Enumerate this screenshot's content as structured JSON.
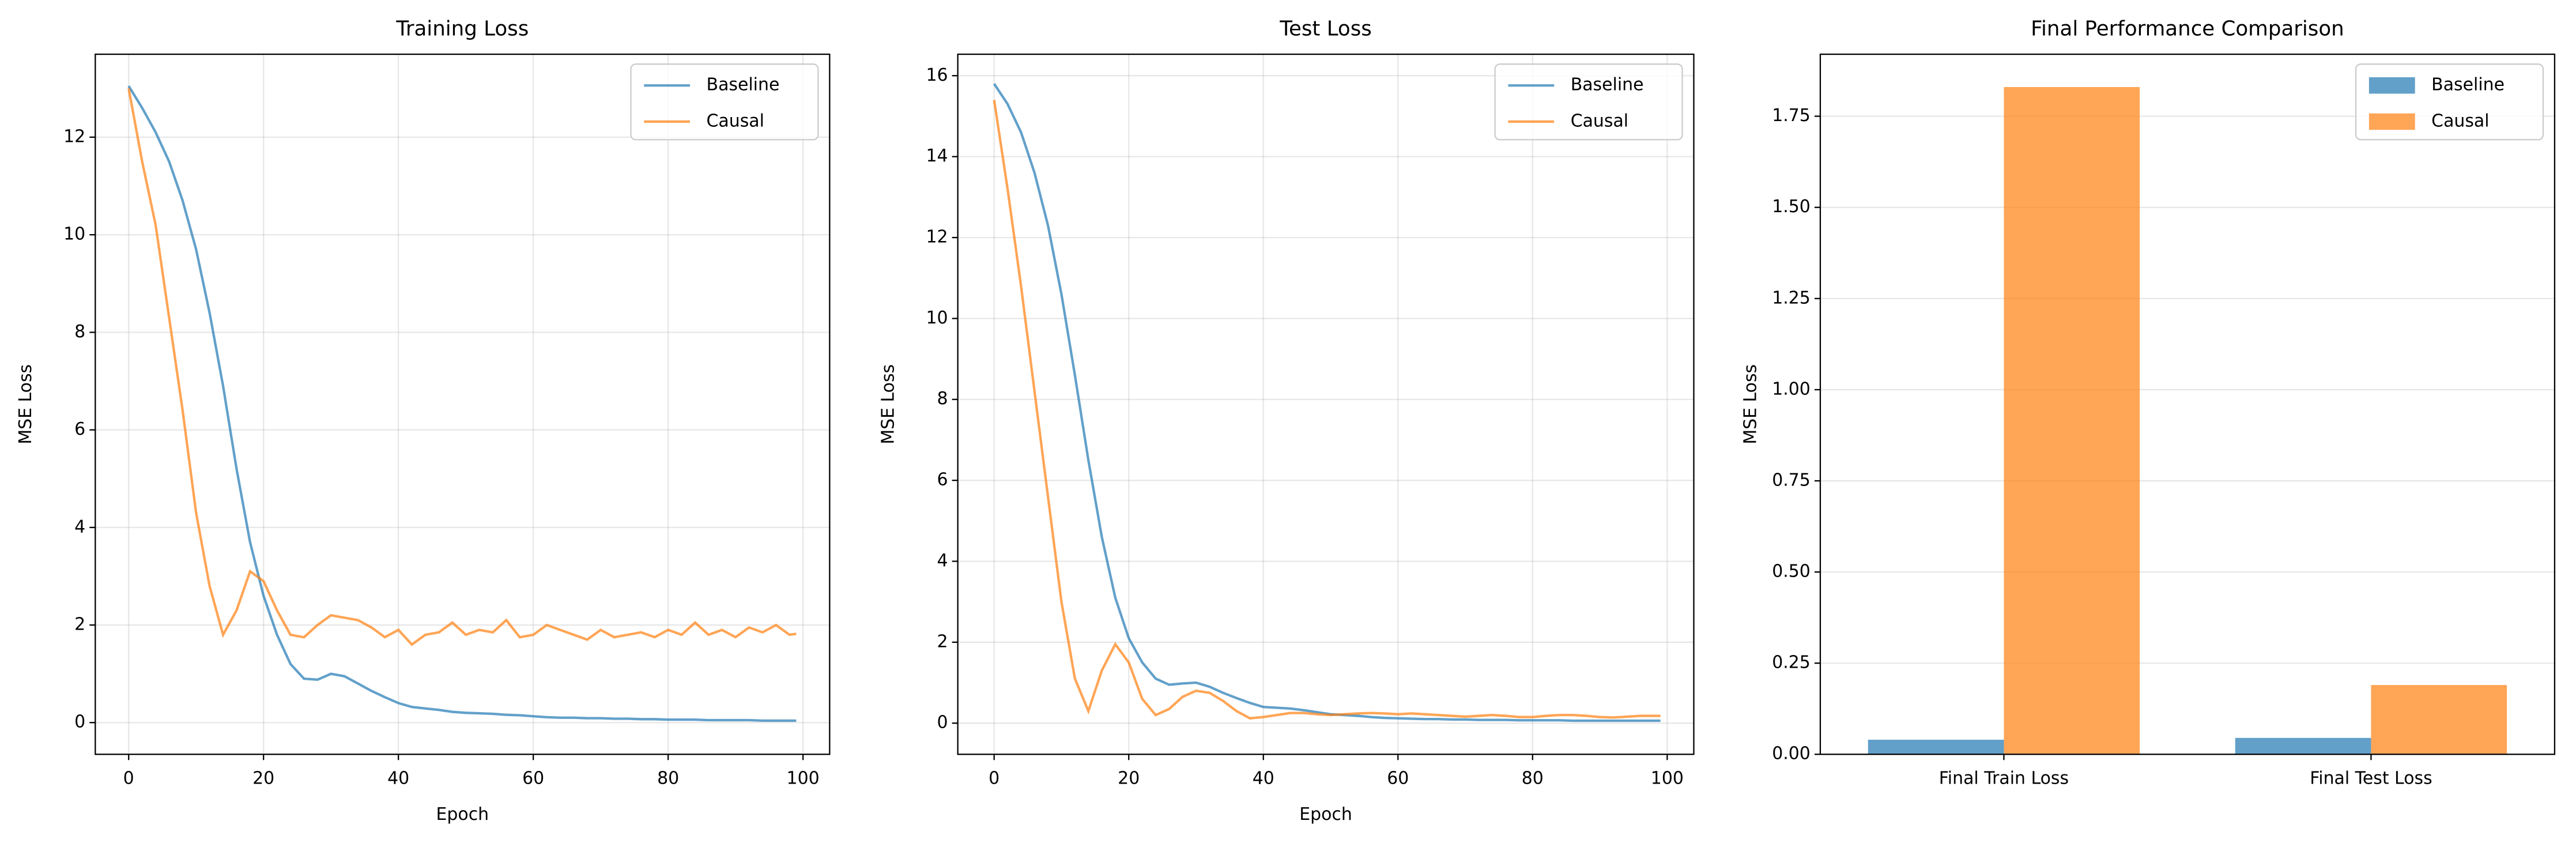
{
  "chart_data": [
    {
      "type": "line",
      "title": "Training Loss",
      "xlabel": "Epoch",
      "ylabel": "MSE Loss",
      "x": [
        0,
        2,
        4,
        6,
        8,
        10,
        12,
        14,
        16,
        18,
        20,
        22,
        24,
        26,
        28,
        30,
        32,
        34,
        36,
        38,
        40,
        42,
        44,
        46,
        48,
        50,
        52,
        54,
        56,
        58,
        60,
        62,
        64,
        66,
        68,
        70,
        72,
        74,
        76,
        78,
        80,
        82,
        84,
        86,
        88,
        90,
        92,
        94,
        96,
        98,
        99
      ],
      "series": [
        {
          "name": "Baseline",
          "color": "#1f77b4",
          "values": [
            13.05,
            12.6,
            12.1,
            11.5,
            10.7,
            9.7,
            8.4,
            6.9,
            5.2,
            3.7,
            2.6,
            1.8,
            1.2,
            0.9,
            0.88,
            1.0,
            0.95,
            0.8,
            0.65,
            0.52,
            0.4,
            0.32,
            0.29,
            0.26,
            0.22,
            0.2,
            0.19,
            0.18,
            0.16,
            0.15,
            0.13,
            0.11,
            0.1,
            0.1,
            0.09,
            0.09,
            0.08,
            0.08,
            0.07,
            0.07,
            0.06,
            0.06,
            0.06,
            0.05,
            0.05,
            0.05,
            0.05,
            0.04,
            0.04,
            0.04,
            0.04
          ]
        },
        {
          "name": "Causal",
          "color": "#ff7f0e",
          "values": [
            13.0,
            11.5,
            10.2,
            8.3,
            6.4,
            4.3,
            2.8,
            1.8,
            2.3,
            3.1,
            2.9,
            2.3,
            1.8,
            1.75,
            2.0,
            2.2,
            2.15,
            2.1,
            1.95,
            1.75,
            1.9,
            1.6,
            1.8,
            1.85,
            2.05,
            1.8,
            1.9,
            1.85,
            2.1,
            1.75,
            1.8,
            2.0,
            1.9,
            1.8,
            1.7,
            1.9,
            1.75,
            1.8,
            1.85,
            1.75,
            1.9,
            1.8,
            2.05,
            1.8,
            1.9,
            1.75,
            1.95,
            1.85,
            2.0,
            1.8,
            1.82
          ]
        }
      ],
      "alpha": 0.7,
      "xlim": [
        -4.95,
        103.95
      ],
      "xticks": [
        0,
        20,
        40,
        60,
        80,
        100
      ],
      "ylim": [
        -0.65,
        13.7
      ],
      "yticks": [
        0,
        2,
        4,
        6,
        8,
        10,
        12
      ],
      "grid": true,
      "legend": "upper right"
    },
    {
      "type": "line",
      "title": "Test Loss",
      "xlabel": "Epoch",
      "ylabel": "MSE Loss",
      "x": [
        0,
        2,
        4,
        6,
        8,
        10,
        12,
        14,
        16,
        18,
        20,
        22,
        24,
        26,
        28,
        30,
        32,
        34,
        36,
        38,
        40,
        42,
        44,
        46,
        48,
        50,
        52,
        54,
        56,
        58,
        60,
        62,
        64,
        66,
        68,
        70,
        72,
        74,
        76,
        78,
        80,
        82,
        84,
        86,
        88,
        90,
        92,
        94,
        96,
        98,
        99
      ],
      "series": [
        {
          "name": "Baseline",
          "color": "#1f77b4",
          "values": [
            15.8,
            15.3,
            14.6,
            13.6,
            12.3,
            10.6,
            8.6,
            6.5,
            4.6,
            3.1,
            2.1,
            1.5,
            1.1,
            0.95,
            0.98,
            1.0,
            0.9,
            0.75,
            0.62,
            0.5,
            0.4,
            0.38,
            0.36,
            0.32,
            0.27,
            0.22,
            0.2,
            0.18,
            0.15,
            0.13,
            0.12,
            0.11,
            0.1,
            0.1,
            0.09,
            0.09,
            0.08,
            0.08,
            0.08,
            0.07,
            0.07,
            0.07,
            0.07,
            0.06,
            0.06,
            0.06,
            0.06,
            0.06,
            0.06,
            0.06,
            0.06
          ]
        },
        {
          "name": "Causal",
          "color": "#ff7f0e",
          "values": [
            15.4,
            13.2,
            10.8,
            8.2,
            5.6,
            3.0,
            1.1,
            0.3,
            1.3,
            1.95,
            1.5,
            0.6,
            0.2,
            0.35,
            0.65,
            0.8,
            0.75,
            0.55,
            0.3,
            0.12,
            0.15,
            0.2,
            0.25,
            0.25,
            0.22,
            0.2,
            0.22,
            0.24,
            0.25,
            0.24,
            0.22,
            0.24,
            0.22,
            0.2,
            0.18,
            0.16,
            0.18,
            0.2,
            0.18,
            0.15,
            0.15,
            0.18,
            0.2,
            0.2,
            0.18,
            0.15,
            0.14,
            0.16,
            0.18,
            0.18,
            0.18
          ]
        }
      ],
      "alpha": 0.7,
      "xlim": [
        -5.4,
        103.95
      ],
      "xticks": [
        0,
        20,
        40,
        60,
        80,
        100
      ],
      "ylim": [
        -0.77,
        16.53
      ],
      "yticks": [
        0,
        2,
        4,
        6,
        8,
        10,
        12,
        14,
        16
      ],
      "grid": true,
      "legend": "upper right"
    },
    {
      "type": "bar",
      "title": "Final Performance Comparison",
      "ylabel": "MSE Loss",
      "categories": [
        "Final Train Loss",
        "Final Test Loss"
      ],
      "series": [
        {
          "name": "Baseline",
          "color": "#1f77b4",
          "values": [
            0.04,
            0.045
          ]
        },
        {
          "name": "Causal",
          "color": "#ff7f0e",
          "values": [
            1.83,
            0.19
          ]
        }
      ],
      "alpha": 0.7,
      "ylim": [
        0,
        1.92
      ],
      "yticks": [
        {
          "value": 0,
          "label": "0.00"
        },
        {
          "value": 0.25,
          "label": "0.25"
        },
        {
          "value": 0.5,
          "label": "0.50"
        },
        {
          "value": 0.75,
          "label": "0.75"
        },
        {
          "value": 1.0,
          "label": "1.00"
        },
        {
          "value": 1.25,
          "label": "1.25"
        },
        {
          "value": 1.5,
          "label": "1.50"
        },
        {
          "value": 1.75,
          "label": "1.75"
        }
      ],
      "grid": true,
      "legend": "upper right"
    }
  ]
}
